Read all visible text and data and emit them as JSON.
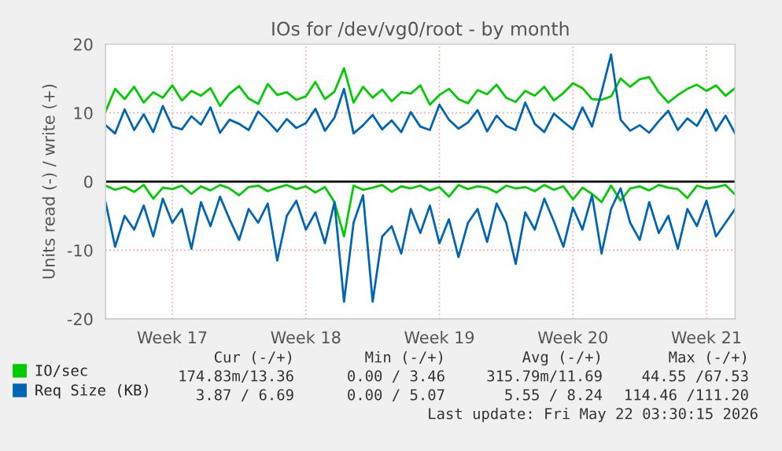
{
  "chart_data": {
    "type": "line",
    "title": "IOs for /dev/vg0/root - by month",
    "ylabel": "Units read (-) / write (+)",
    "categories": [
      null,
      null,
      null,
      null,
      null,
      null,
      null,
      "Week 17",
      null,
      null,
      null,
      null,
      null,
      null,
      null,
      null,
      null,
      null,
      null,
      null,
      null,
      "Week 18",
      null,
      null,
      null,
      null,
      null,
      null,
      null,
      null,
      null,
      null,
      null,
      null,
      null,
      "Week 19",
      null,
      null,
      null,
      null,
      null,
      null,
      null,
      null,
      null,
      null,
      null,
      null,
      null,
      "Week 20",
      null,
      null,
      null,
      null,
      null,
      null,
      null,
      null,
      null,
      null,
      null,
      null,
      null,
      "Week 21",
      null,
      null,
      null
    ],
    "series": [
      {
        "name": "IO/sec",
        "color": "#00cc00",
        "values": [
          10.2,
          13.5,
          12,
          13.8,
          11.5,
          13,
          12.2,
          14,
          11.8,
          13.2,
          12.5,
          13.6,
          11,
          12.8,
          13.9,
          12.1,
          11.3,
          14.2,
          12.6,
          13,
          11.9,
          12.4,
          14.5,
          12,
          13.1,
          16.5,
          11.5,
          13.8,
          12.2,
          13.4,
          11.7,
          13,
          12.8,
          14,
          11.2,
          12.6,
          13.5,
          12,
          11.4,
          13.3,
          12.7,
          14.1,
          12.2,
          11.6,
          13.2,
          12.5,
          13.8,
          11.8,
          12.9,
          14.3,
          13.6,
          12,
          11.9,
          12.4,
          15,
          13.8,
          14.9,
          15.2,
          13,
          11.5,
          12.6,
          13.5,
          14.1,
          13.2,
          14,
          12.5,
          13.6
        ]
      },
      {
        "name": "Req Size (KB)",
        "color": "#0066b3",
        "values": [
          8.2,
          7,
          10.5,
          7.5,
          9.8,
          7.2,
          11,
          8,
          7.6,
          9.5,
          8.3,
          10.8,
          7.1,
          9,
          8.4,
          7.5,
          10.2,
          8.8,
          7.3,
          9.1,
          7.8,
          8.5,
          10.6,
          7.4,
          9.3,
          13.5,
          7,
          8.2,
          9.7,
          7.6,
          8.9,
          7.2,
          10.1,
          8,
          7.5,
          11.2,
          9,
          7.7,
          8.6,
          10.4,
          7.3,
          9.6,
          8.1,
          7.5,
          11.5,
          8.4,
          7.2,
          9.9,
          8.7,
          7.6,
          10.8,
          8,
          13,
          18.5,
          9,
          7.4,
          8.2,
          7.1,
          8.8,
          10.3,
          7.5,
          9.2,
          8.1,
          10.5,
          7.4,
          9.6,
          7
        ]
      },
      {
        "color": "#00cc00",
        "values": [
          -0.6,
          -1.2,
          -0.8,
          -1.5,
          -0.5,
          -2.5,
          -0.9,
          -1.1,
          -0.6,
          -1.8,
          -0.7,
          -1.3,
          -0.5,
          -1,
          -2,
          -0.8,
          -0.6,
          -1.4,
          -0.9,
          -0.5,
          -1.1,
          -0.7,
          -1.6,
          -0.8,
          -3,
          -8,
          -0.6,
          -1.2,
          -0.9,
          -0.5,
          -1.5,
          -0.7,
          -1,
          -0.6,
          -1.3,
          -0.8,
          -2.2,
          -0.5,
          -1.1,
          -0.7,
          -0.9,
          -1.6,
          -0.6,
          -1,
          -0.8,
          -1.4,
          -0.5,
          -1.2,
          -0.7,
          -2.6,
          -0.9,
          -1.8,
          -3,
          -0.6,
          -2.8,
          -1,
          -0.7,
          -1.3,
          -0.5,
          -0.9,
          -1.1,
          -2.4,
          -0.6,
          -1,
          -0.8,
          -0.5,
          -1.9
        ]
      },
      {
        "color": "#0066b3",
        "values": [
          -3,
          -9.5,
          -5,
          -7,
          -3.5,
          -8,
          -2.5,
          -6,
          -4,
          -9.8,
          -3,
          -6.5,
          -2.2,
          -5.5,
          -8.5,
          -4,
          -6,
          -3.2,
          -11.5,
          -5,
          -2.8,
          -7,
          -4.5,
          -9,
          -3,
          -17.5,
          -6,
          -2,
          -17.5,
          -8,
          -6.5,
          -10.5,
          -4,
          -7.5,
          -3.5,
          -9,
          -5.5,
          -11,
          -6,
          -4,
          -8.8,
          -3.2,
          -6,
          -12,
          -4.5,
          -7,
          -2.5,
          -5.8,
          -9.5,
          -3.8,
          -7,
          -2,
          -10.5,
          -4,
          -1,
          -6,
          -8.5,
          -3,
          -7.5,
          -5,
          -9.8,
          -4,
          -6.5,
          -2.8,
          -8,
          -6,
          -4
        ]
      }
    ],
    "ylim": [
      -20,
      20
    ],
    "yticks": [
      -20,
      -10,
      0,
      10,
      20
    ],
    "ref_lines": [
      {
        "axis": "y",
        "value": 0,
        "color": "#000000"
      }
    ],
    "grid": true,
    "legend": "bottom",
    "marker": "none",
    "line_style": "solid",
    "annotations": [
      "Cur (-/+)",
      "Min (-/+)",
      "Avg (-/+)",
      "Max (-/+)",
      "174.83m/13.36",
      "0.00 / 3.46",
      "315.79m/11.69",
      "44.55 /67.53",
      "3.87 / 6.69",
      "0.00 / 5.07",
      "5.55 / 8.24",
      "114.46 /111.20",
      "Last update: Fri May 22 03:30:15 2026"
    ]
  }
}
